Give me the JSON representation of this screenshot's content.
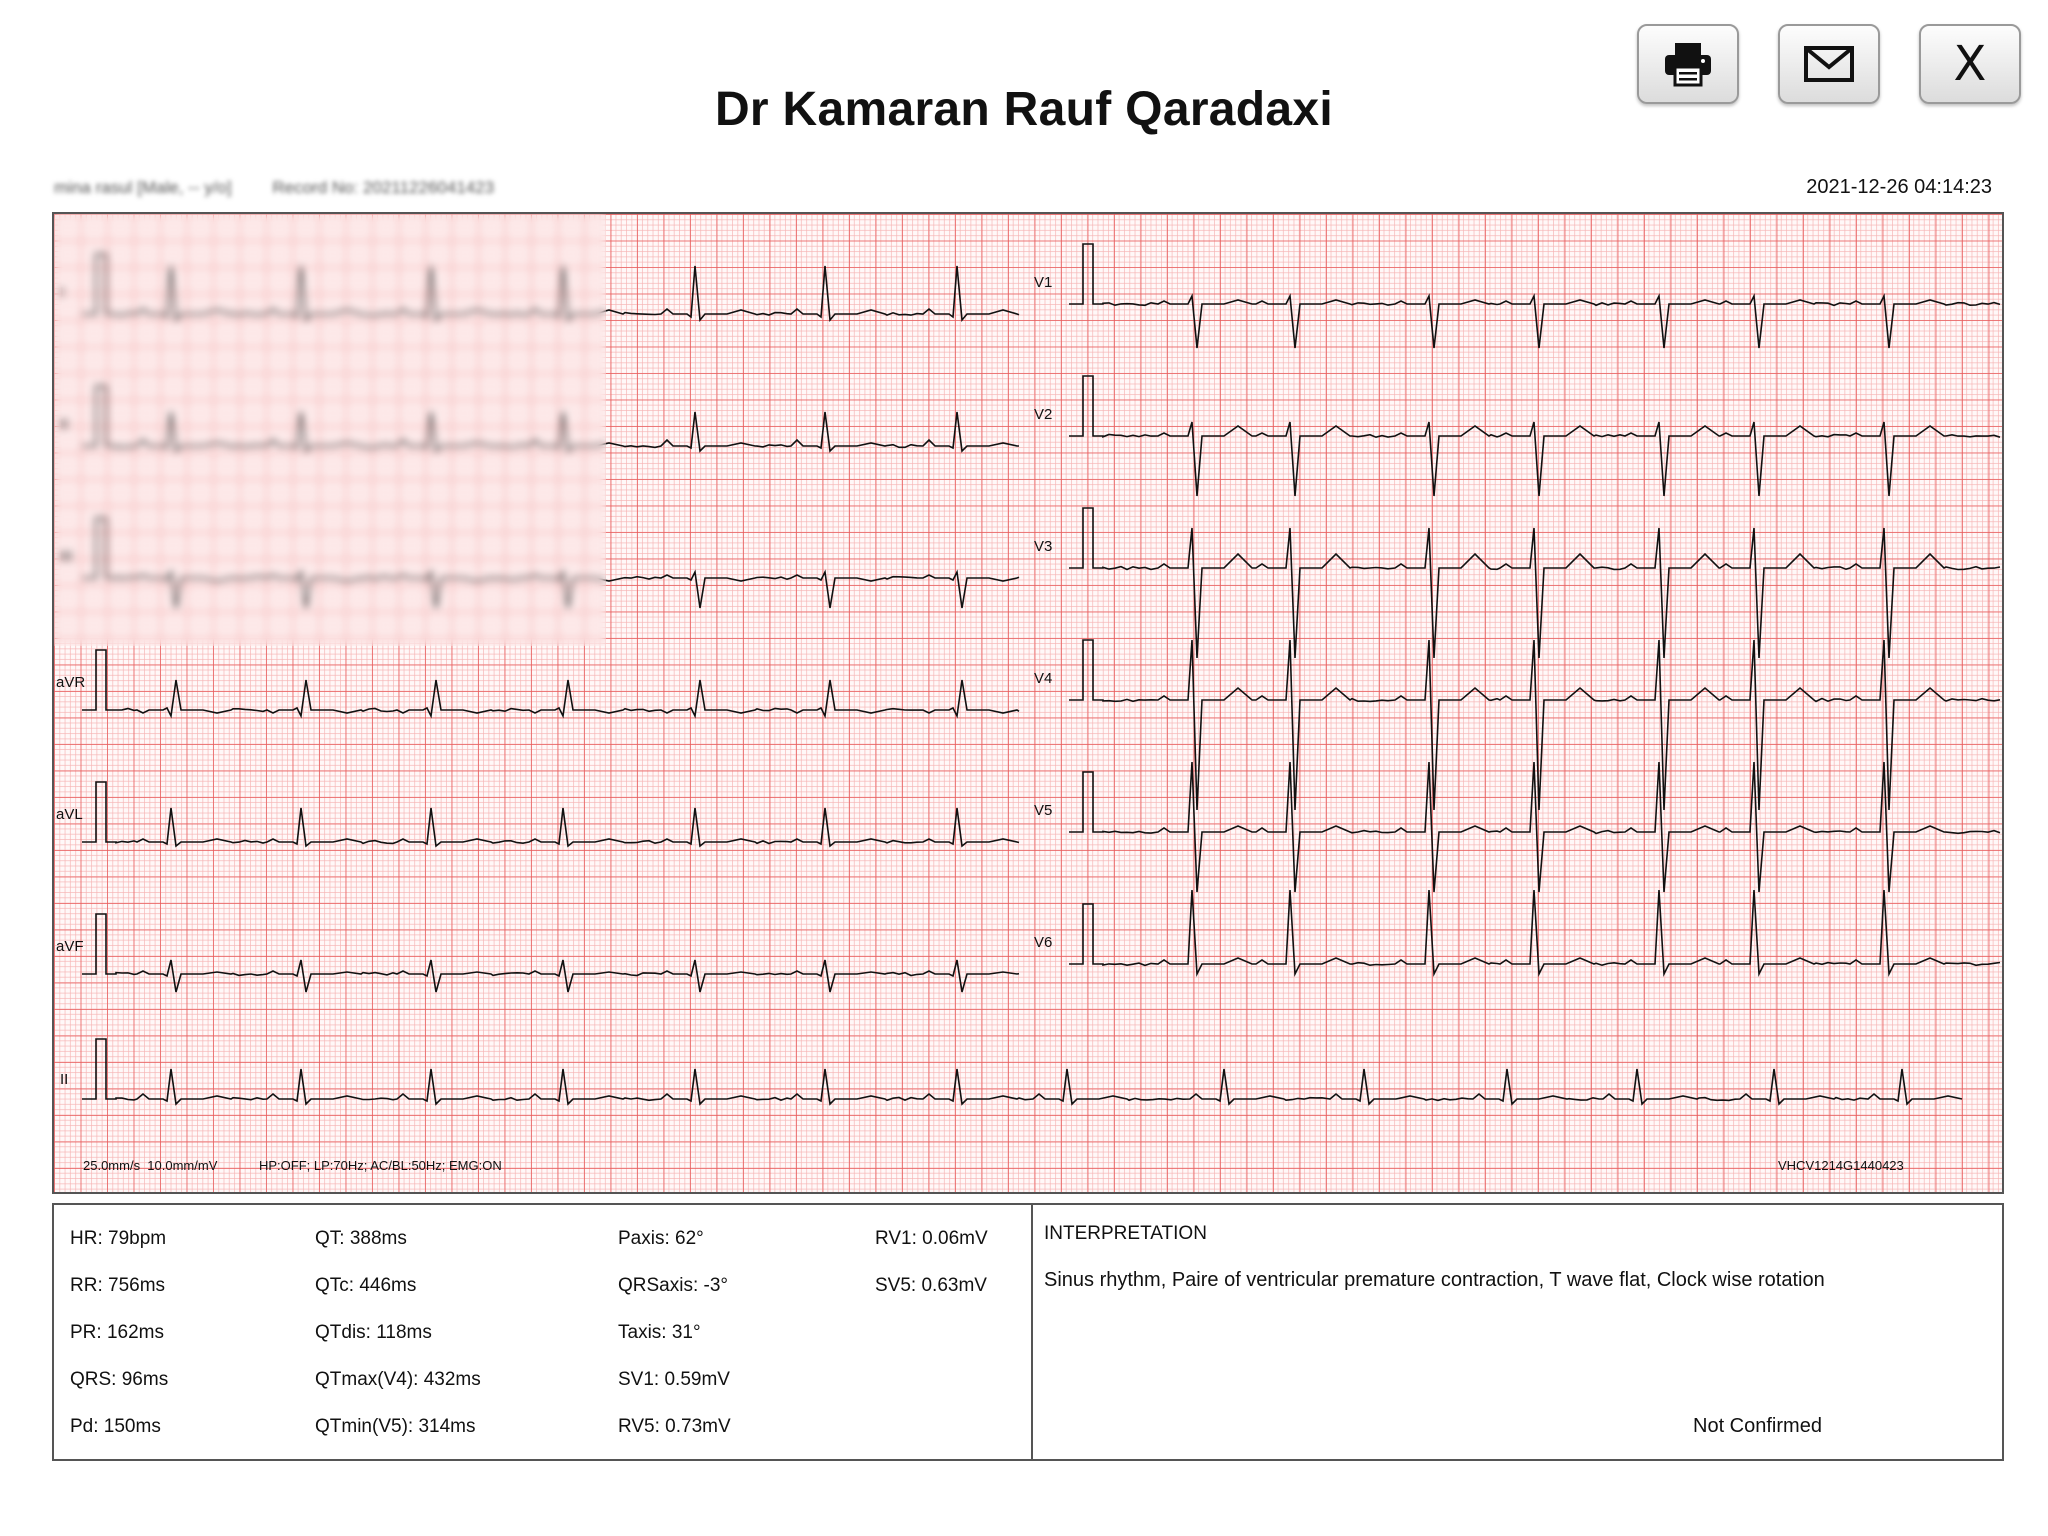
{
  "toolbar": {
    "print_icon": "printer-icon",
    "mail_icon": "envelope-icon",
    "close_label": "X"
  },
  "header": {
    "doctor_name": "Dr Kamaran Rauf Qaradaxi",
    "patient_summary": "mina rasul [Male, -- y/o]",
    "record_no": "Record No: 20211226041423",
    "datetime": "2021-12-26 04:14:23"
  },
  "ecg": {
    "leads_left": [
      "I",
      "II",
      "III",
      "aVR",
      "aVL",
      "aVF"
    ],
    "leads_right": [
      "V1",
      "V2",
      "V3",
      "V4",
      "V5",
      "V6"
    ],
    "rhythm_lead": "II",
    "settings": "25.0mm/s  10.0mm/mV",
    "filters": "HP:OFF; LP:70Hz; AC/BL:50Hz; EMG:ON",
    "device_id": "VHCV1214G1440423",
    "colors": {
      "grid_major": "#e85c5c",
      "grid_minor": "#f6b4b4",
      "trace": "#111111"
    }
  },
  "measurements": {
    "col1": [
      "HR: 79bpm",
      "RR: 756ms",
      "PR: 162ms",
      "QRS: 96ms",
      "Pd: 150ms"
    ],
    "col2": [
      "QT: 388ms",
      "QTc: 446ms",
      "QTdis: 118ms",
      "QTmax(V4): 432ms",
      "QTmin(V5): 314ms"
    ],
    "col3": [
      "Paxis: 62°",
      "QRSaxis: -3°",
      "Taxis: 31°",
      "SV1: 0.59mV",
      "RV5: 0.73mV"
    ],
    "col4": [
      "RV1: 0.06mV",
      "SV5: 0.63mV"
    ]
  },
  "interpretation": {
    "title": "INTERPRETATION",
    "text": "Sinus rhythm, Paire of ventricular premature contraction, T wave flat, Clock wise rotation",
    "status": "Not Confirmed"
  }
}
